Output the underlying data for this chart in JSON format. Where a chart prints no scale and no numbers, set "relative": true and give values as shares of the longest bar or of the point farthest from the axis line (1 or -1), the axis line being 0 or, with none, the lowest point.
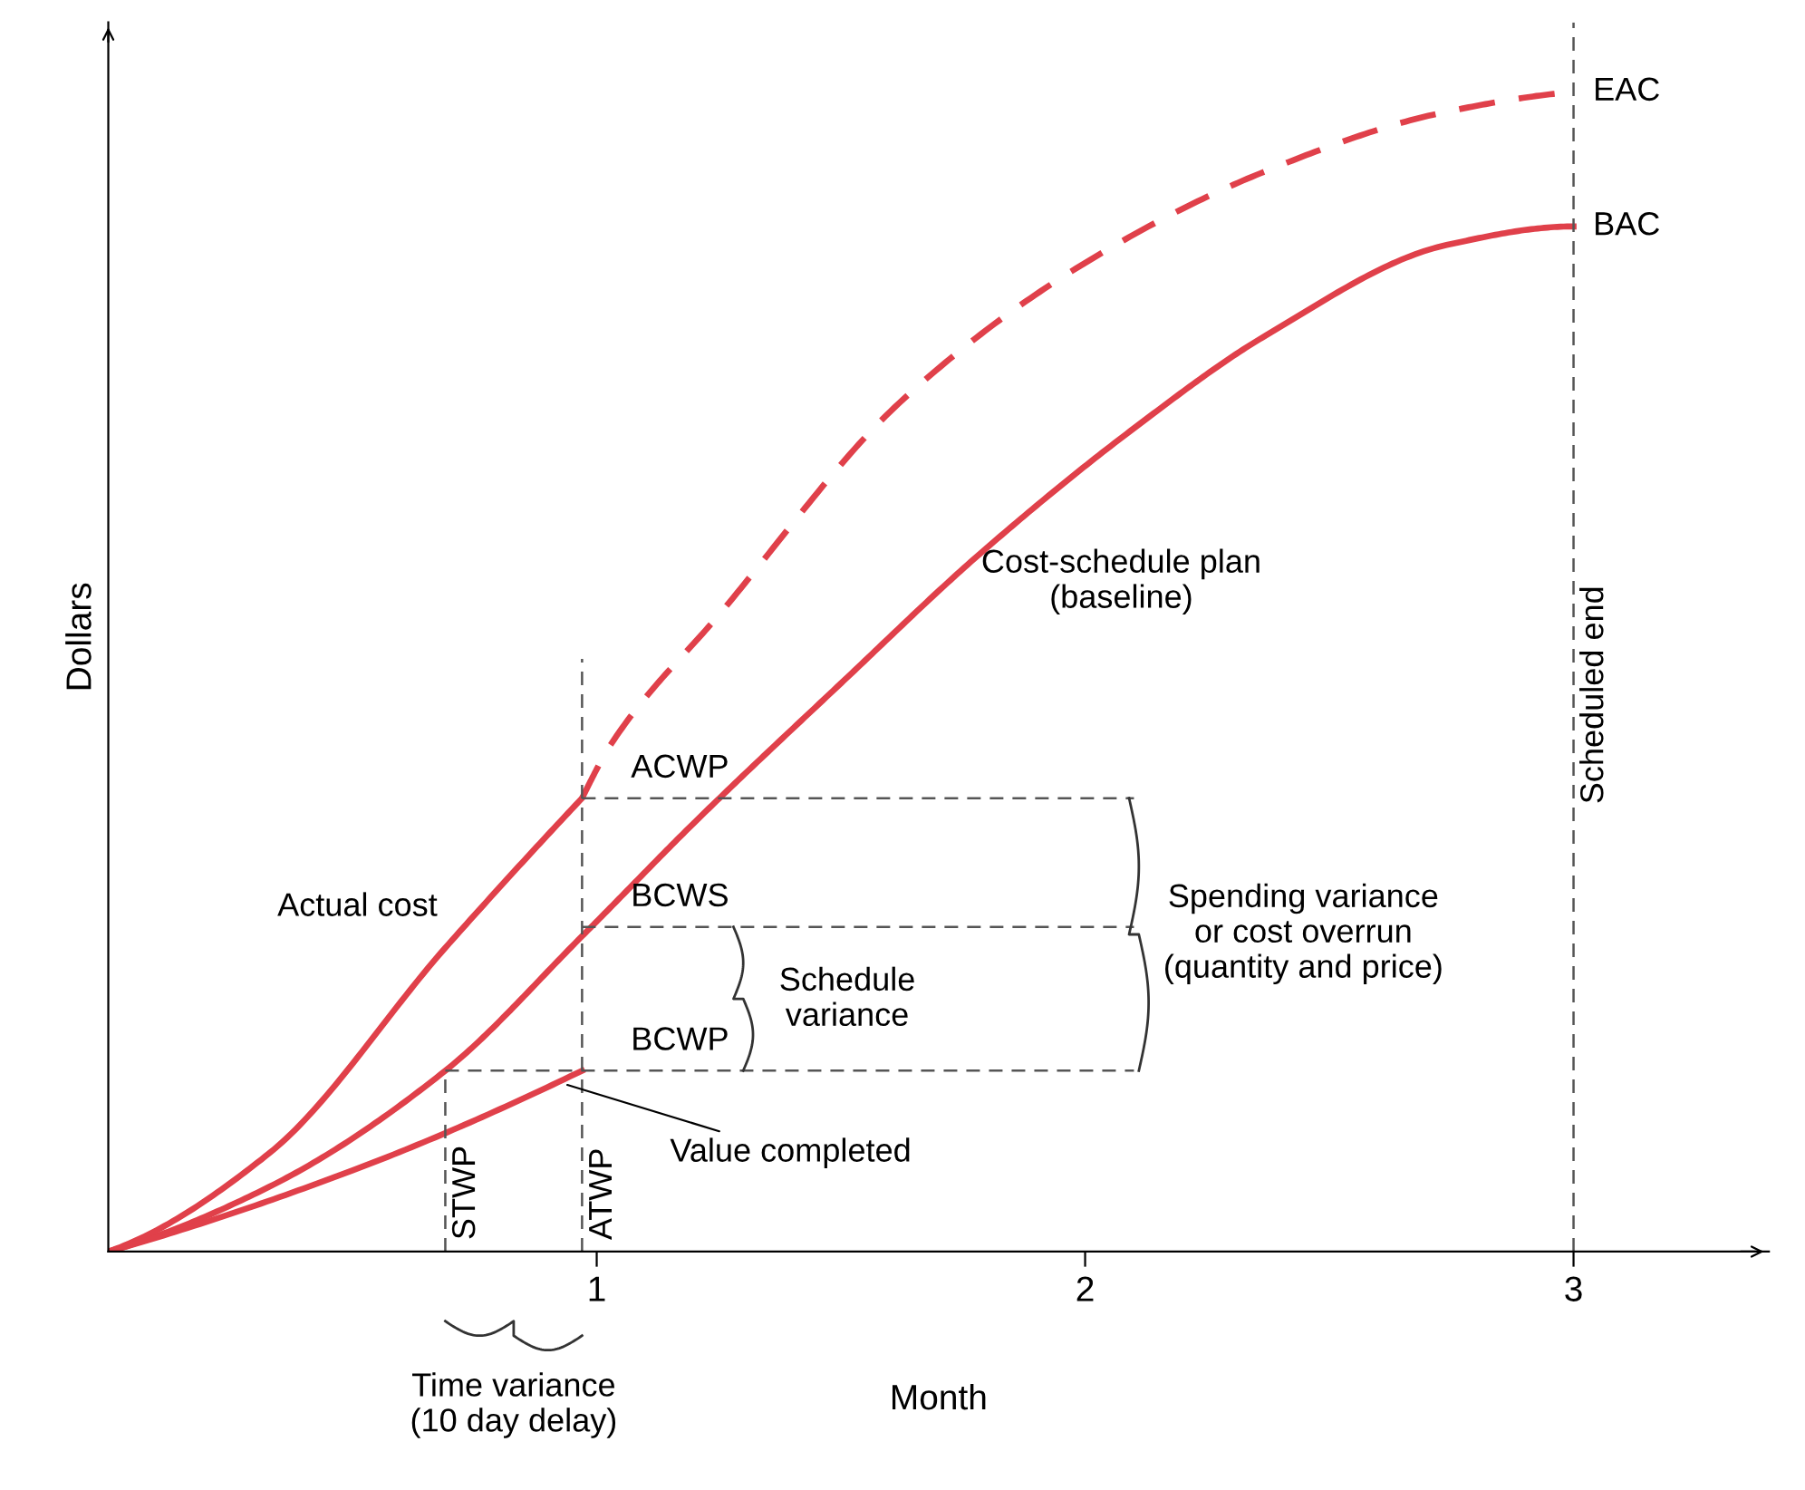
{
  "chart_data": {
    "type": "line",
    "relative": true,
    "xlabel": "Month",
    "ylabel": "Dollars",
    "xlim": [
      0,
      3.4
    ],
    "xticks": [
      1,
      2,
      3
    ],
    "grid": false,
    "marker": "none",
    "series": [
      {
        "color": "#e0404a",
        "line_style": "solid",
        "x": [
          0,
          0.33,
          0.69,
          0.97,
          1.2,
          1.5,
          1.78,
          2.1,
          2.37,
          2.74,
          3.0
        ],
        "values": [
          0,
          0.056,
          0.156,
          0.272,
          0.37,
          0.49,
          0.6,
          0.71,
          0.79,
          0.868,
          0.884
        ]
      },
      {
        "color": "#e0404a",
        "line_style": "solid",
        "x": [
          0,
          0.33,
          0.69,
          0.97
        ],
        "values": [
          0,
          0.085,
          0.262,
          0.391
        ]
      },
      {
        "color": "#e0404a",
        "line_style": "dashed",
        "x": [
          0.97,
          1.03,
          1.25,
          1.62,
          1.99,
          2.36,
          2.73,
          3.0
        ],
        "values": [
          0.391,
          0.438,
          0.549,
          0.732,
          0.85,
          0.93,
          0.982,
          1.0
        ]
      },
      {
        "color": "#e0404a",
        "line_style": "solid",
        "x": [
          0,
          0.5,
          0.97
        ],
        "values": [
          0,
          0.07,
          0.156
        ]
      }
    ],
    "ref_lines": [
      {
        "axis": "x",
        "value": 0.69,
        "label": "STWP",
        "color": "#555555",
        "line_style": "dashed"
      },
      {
        "axis": "x",
        "value": 0.97,
        "label": "ATWP",
        "color": "#555555",
        "line_style": "dashed"
      },
      {
        "axis": "x",
        "value": 3.0,
        "label": "Scheduled end",
        "color": "#555555",
        "line_style": "dashed"
      },
      {
        "axis": "y",
        "value": 0.391,
        "label": "ACWP",
        "color": "#555555",
        "line_style": "dashed"
      },
      {
        "axis": "y",
        "value": 0.28,
        "label": "BCWS",
        "color": "#555555",
        "line_style": "dashed"
      },
      {
        "axis": "y",
        "value": 0.156,
        "label": "BCWP",
        "color": "#555555",
        "line_style": "dashed"
      }
    ],
    "annotations": [
      "Actual cost",
      "Cost-schedule plan\n(baseline)",
      {
        "text": "EAC",
        "x": 3.0,
        "y": 1.0
      },
      {
        "text": "BAC",
        "x": 3.0,
        "y": 0.884
      },
      {
        "text": "Value completed",
        "x": 0.93,
        "y": 0.145
      },
      {
        "text": "Spending variance\nor cost overrun\n(quantity and price)",
        "x": 2.06,
        "y": 0.274
      },
      "Schedule\nvariance",
      "Time variance\n(10 day delay)"
    ]
  }
}
